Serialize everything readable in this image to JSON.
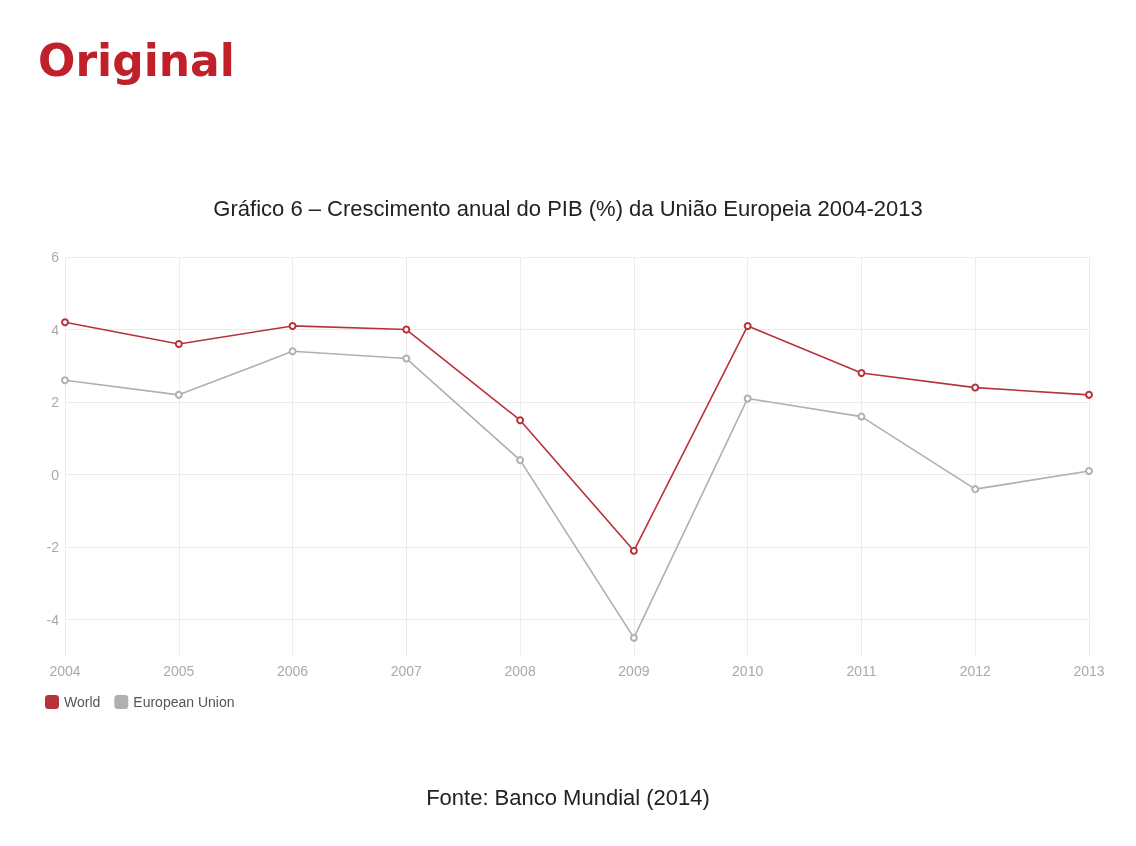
{
  "chart_data": {
    "type": "line",
    "title": "Gráfico 6 – Crescimento anual do PIB (%) da União Europeia 2004-2013",
    "annotations": [
      "Original",
      "Fonte: Banco Mundial (2014)"
    ],
    "x": [
      2004,
      2005,
      2006,
      2007,
      2008,
      2009,
      2010,
      2011,
      2012,
      2013
    ],
    "xlim": [
      2004,
      2013
    ],
    "xticks": [
      2004,
      2005,
      2006,
      2007,
      2008,
      2009,
      2010,
      2011,
      2012,
      2013
    ],
    "ylim": [
      -5,
      6
    ],
    "yticks": [
      -4,
      -2,
      0,
      2,
      4,
      6
    ],
    "series": [
      {
        "name": "World",
        "color": "#b8323a",
        "values": [
          4.2,
          3.6,
          4.1,
          4.0,
          1.5,
          -2.1,
          4.1,
          2.8,
          2.4,
          2.2
        ]
      },
      {
        "name": "European Union",
        "color": "#b0b0b0",
        "values": [
          2.6,
          2.2,
          3.4,
          3.2,
          0.4,
          -4.5,
          2.1,
          1.6,
          -0.4,
          0.1
        ]
      }
    ],
    "grid": true,
    "legend": "bottom left",
    "marker": "circle",
    "line_style": "solid"
  }
}
